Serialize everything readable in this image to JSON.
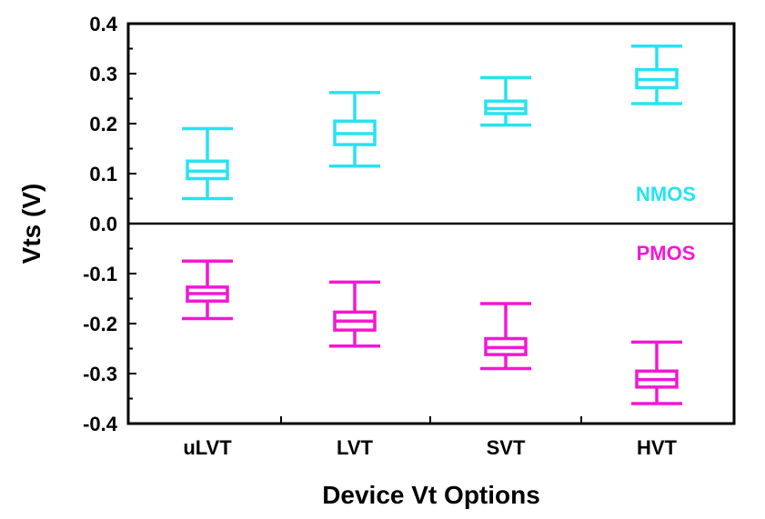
{
  "chart_data": {
    "type": "box",
    "xlabel": "Device Vt Options",
    "ylabel": "Vts (V)",
    "ylim": [
      -0.4,
      0.4
    ],
    "yticks": [
      0.4,
      0.3,
      0.2,
      0.1,
      0.0,
      -0.1,
      -0.2,
      -0.3,
      -0.4
    ],
    "ytick_labels": [
      "0.4",
      "0.3",
      "0.2",
      "0.1",
      "0.0",
      "-0.1",
      "-0.2",
      "-0.3",
      "-0.4"
    ],
    "categories": [
      "uLVT",
      "LVT",
      "SVT",
      "HVT"
    ],
    "zero_line": true,
    "grid": false,
    "series": [
      {
        "name": "NMOS",
        "color": "#27e3f0",
        "boxes": [
          {
            "whisker_low": 0.05,
            "q1": 0.09,
            "median": 0.105,
            "q3": 0.125,
            "whisker_high": 0.19
          },
          {
            "whisker_low": 0.115,
            "q1": 0.158,
            "median": 0.18,
            "q3": 0.205,
            "whisker_high": 0.262
          },
          {
            "whisker_low": 0.197,
            "q1": 0.22,
            "median": 0.23,
            "q3": 0.245,
            "whisker_high": 0.292
          },
          {
            "whisker_low": 0.24,
            "q1": 0.272,
            "median": 0.288,
            "q3": 0.308,
            "whisker_high": 0.355
          }
        ]
      },
      {
        "name": "PMOS",
        "color": "#f318d2",
        "boxes": [
          {
            "whisker_low": -0.19,
            "q1": -0.155,
            "median": -0.14,
            "q3": -0.127,
            "whisker_high": -0.075
          },
          {
            "whisker_low": -0.245,
            "q1": -0.213,
            "median": -0.195,
            "q3": -0.177,
            "whisker_high": -0.117
          },
          {
            "whisker_low": -0.29,
            "q1": -0.262,
            "median": -0.248,
            "q3": -0.23,
            "whisker_high": -0.16
          },
          {
            "whisker_low": -0.36,
            "q1": -0.327,
            "median": -0.312,
            "q3": -0.295,
            "whisker_high": -0.237
          }
        ]
      }
    ]
  }
}
